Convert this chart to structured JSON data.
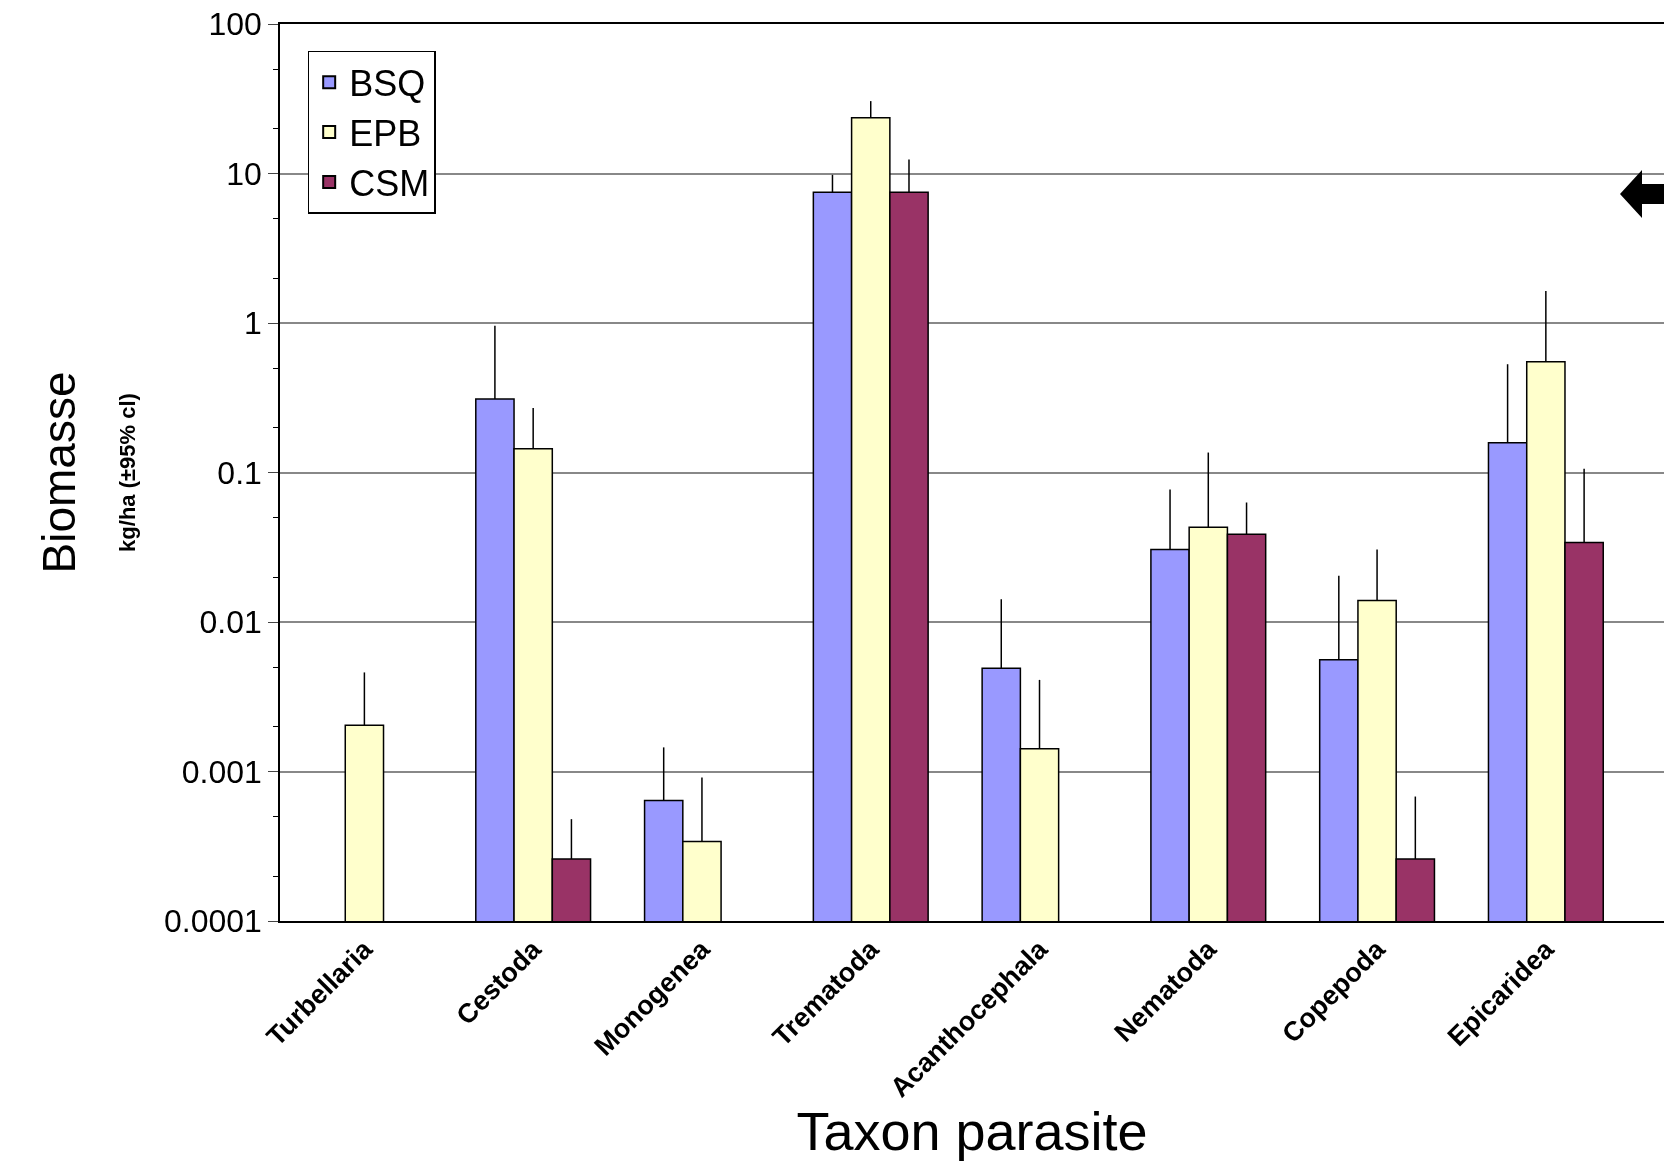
{
  "chart_data": {
    "type": "bar",
    "xlabel": "Taxon parasite",
    "ylabel": "Biomasse\nkg/ha (±95% cl)",
    "categories": [
      "Turbellaria",
      "Cestoda",
      "Monogenea",
      "Trematoda",
      "Acanthocephala",
      "Nematoda",
      "Copepoda",
      "Epicaridea"
    ],
    "series": [
      {
        "name": "BSQ",
        "color": "#9999ff",
        "values": [
          null,
          0.31,
          0.00064,
          7.5,
          0.0049,
          0.0305,
          0.0056,
          0.158
        ],
        "errors": [
          null,
          [
            0.31,
            0.96
          ],
          [
            0.00064,
            0.00145
          ],
          [
            7.5,
            9.8
          ],
          [
            0.0049,
            0.0142
          ],
          [
            0.0305,
            0.077
          ],
          [
            0.0056,
            0.0204
          ],
          [
            0.158,
            0.53
          ]
        ]
      },
      {
        "name": "EPB",
        "color": "#ffffcc",
        "values": [
          0.00204,
          0.144,
          0.00034,
          23.6,
          0.00142,
          0.043,
          0.0139,
          0.55
        ],
        "errors": [
          [
            0.00204,
            0.0046
          ],
          [
            0.144,
            0.27
          ],
          [
            0.00034,
            0.00091
          ],
          [
            23.6,
            30.5
          ],
          [
            0.00142,
            0.0041
          ],
          [
            0.043,
            0.136
          ],
          [
            0.0139,
            0.0305
          ],
          [
            0.55,
            1.64
          ]
        ]
      },
      {
        "name": "CSM",
        "color": "#993366",
        "values": [
          null,
          0.00026,
          null,
          7.5,
          null,
          0.0386,
          0.00026,
          0.034
        ],
        "errors": [
          null,
          [
            0.00026,
            0.00048
          ],
          null,
          [
            7.5,
            12.4
          ],
          null,
          [
            0.0386,
            0.063
          ],
          [
            0.00026,
            0.00068
          ],
          [
            0.034,
            0.106
          ]
        ]
      }
    ],
    "log": "y",
    "ylim": [
      0.0001,
      100
    ],
    "yticks": [
      0.0001,
      0.001,
      0.01,
      0.1,
      1,
      10,
      100
    ],
    "grid": "y",
    "legend": "top left"
  }
}
